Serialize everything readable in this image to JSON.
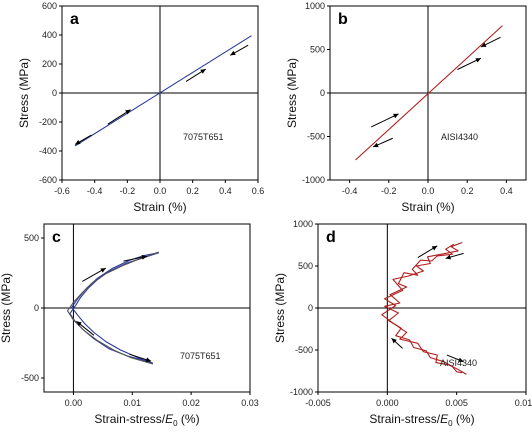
{
  "chart_data": [
    {
      "panel": "a",
      "type": "line",
      "xlabel": "Strain (%)",
      "ylabel": "Stress (MPa)",
      "annotation": "7075T651",
      "xlim": [
        -0.6,
        0.6
      ],
      "ylim": [
        -600,
        600
      ],
      "xticks": [
        "-0.6",
        "-0.4",
        "-0.2",
        "0.0",
        "0.2",
        "0.4",
        "0.6"
      ],
      "yticks": [
        "-600",
        "-400",
        "-200",
        "0",
        "200",
        "400",
        "600"
      ],
      "grid": false,
      "series": [
        {
          "color": "#2b3a9a",
          "points": [
            [
              -0.52,
              -365
            ],
            [
              0.56,
              395
            ]
          ]
        }
      ],
      "arrows": [
        {
          "from": [
            -0.42,
            -290
          ],
          "to": [
            -0.52,
            -355
          ],
          "dir": "down-left"
        },
        {
          "from": [
            -0.32,
            -215
          ],
          "to": [
            -0.18,
            -115
          ],
          "dir": "up-right"
        },
        {
          "from": [
            0.16,
            80
          ],
          "to": [
            0.28,
            165
          ],
          "dir": "up-right"
        },
        {
          "from": [
            0.54,
            330
          ],
          "to": [
            0.43,
            260
          ],
          "dir": "down-left"
        }
      ]
    },
    {
      "panel": "b",
      "type": "line",
      "xlabel": "Strain (%)",
      "ylabel": "Stress (MPa)",
      "annotation": "AISI4340",
      "xlim": [
        -0.5,
        0.5
      ],
      "ylim": [
        -1000,
        1000
      ],
      "xticks": [
        "-0.4",
        "-0.2",
        "0.0",
        "0.2",
        "0.4"
      ],
      "yticks": [
        "-1000",
        "-500",
        "0",
        "500",
        "1000"
      ],
      "grid": false,
      "series": [
        {
          "color": "#b01e1e",
          "points": [
            [
              -0.37,
              -770
            ],
            [
              0.38,
              775
            ]
          ]
        }
      ],
      "arrows": [
        {
          "from": [
            -0.18,
            -520
          ],
          "to": [
            -0.28,
            -620
          ],
          "dir": "down-left"
        },
        {
          "from": [
            -0.29,
            -390
          ],
          "to": [
            -0.15,
            -240
          ],
          "dir": "up-right"
        },
        {
          "from": [
            0.15,
            270
          ],
          "to": [
            0.27,
            400
          ],
          "dir": "up-right"
        },
        {
          "from": [
            0.37,
            640
          ],
          "to": [
            0.27,
            530
          ],
          "dir": "down-left"
        }
      ]
    },
    {
      "panel": "c",
      "type": "line",
      "xlabel": "Strain-stress/E0 (%)",
      "ylabel": "Stress (MPa)",
      "annotation": "7075T651",
      "xlim": [
        -0.005,
        0.03
      ],
      "ylim": [
        -600,
        600
      ],
      "xticks": [
        "0.00",
        "0.01",
        "0.02",
        "0.03"
      ],
      "yticks": [
        "-500",
        "0",
        "500"
      ],
      "grid": false,
      "series": [
        {
          "color": "#2b3a9a",
          "points": [
            [
              0.0145,
              395
            ],
            [
              0.012,
              360
            ],
            [
              0.009,
              320
            ],
            [
              0.006,
              260
            ],
            [
              0.004,
              200
            ],
            [
              0.0025,
              140
            ],
            [
              0.0012,
              75
            ],
            [
              0.0004,
              20
            ],
            [
              -0.0006,
              -40
            ],
            [
              0.0002,
              -90
            ],
            [
              0.0015,
              -150
            ],
            [
              0.0035,
              -220
            ],
            [
              0.006,
              -290
            ],
            [
              0.009,
              -340
            ],
            [
              0.012,
              -375
            ],
            [
              0.0135,
              -395
            ]
          ]
        },
        {
          "color": "#2b3a9a",
          "points": [
            [
              0.0135,
              -395
            ],
            [
              0.011,
              -355
            ],
            [
              0.008,
              -300
            ],
            [
              0.0055,
              -240
            ],
            [
              0.0035,
              -175
            ],
            [
              0.002,
              -115
            ],
            [
              0.0008,
              -55
            ],
            [
              -0.0003,
              5
            ],
            [
              0.0008,
              70
            ],
            [
              0.0022,
              140
            ],
            [
              0.004,
              210
            ],
            [
              0.0065,
              280
            ],
            [
              0.0095,
              340
            ],
            [
              0.012,
              375
            ],
            [
              0.0145,
              395
            ]
          ]
        },
        {
          "color": "#555555",
          "points": [
            [
              0.0145,
              400
            ],
            [
              0.0115,
              355
            ],
            [
              0.0085,
              305
            ],
            [
              0.0055,
              245
            ],
            [
              0.0032,
              180
            ],
            [
              0.0015,
              110
            ],
            [
              0.0,
              40
            ],
            [
              -0.001,
              -20
            ],
            [
              0.0,
              -85
            ],
            [
              0.0018,
              -160
            ],
            [
              0.004,
              -230
            ],
            [
              0.0068,
              -300
            ],
            [
              0.0098,
              -355
            ],
            [
              0.0135,
              -400
            ]
          ]
        }
      ],
      "arrows": [
        {
          "from": [
            0.0015,
            190
          ],
          "to": [
            0.0055,
            285
          ],
          "dir": "up-right"
        },
        {
          "from": [
            0.0085,
            335
          ],
          "to": [
            0.0125,
            370
          ],
          "dir": "up-right"
        },
        {
          "from": [
            0.0035,
            -195
          ],
          "to": [
            0.0005,
            -95
          ],
          "dir": "up-left"
        },
        {
          "from": [
            0.0095,
            -330
          ],
          "to": [
            0.0132,
            -380
          ],
          "dir": "down-right"
        }
      ]
    },
    {
      "panel": "d",
      "type": "line",
      "xlabel": "Strain-stress/E0 (%)",
      "ylabel": "Stress (MPa)",
      "annotation": "AISI4340",
      "xlim": [
        -0.005,
        0.01
      ],
      "ylim": [
        -1000,
        1000
      ],
      "xticks": [
        "-0.005",
        "0.000",
        "0.005",
        "0.010"
      ],
      "yticks": [
        "-1000",
        "-500",
        "0",
        "500",
        "1000"
      ],
      "grid": false,
      "series": [
        {
          "color": "#b01e1e",
          "points": [
            [
              0.0048,
              760
            ],
            [
              0.0042,
              700
            ],
            [
              0.0047,
              640
            ],
            [
              0.0036,
              620
            ],
            [
              0.0032,
              560
            ],
            [
              0.0024,
              570
            ],
            [
              0.0018,
              460
            ],
            [
              0.0022,
              390
            ],
            [
              0.0012,
              420
            ],
            [
              0.0008,
              290
            ],
            [
              0.0014,
              250
            ],
            [
              0.0002,
              160
            ],
            [
              0.0009,
              60
            ],
            [
              -0.0002,
              20
            ],
            [
              0.0008,
              -60
            ],
            [
              0.0001,
              -150
            ],
            [
              0.001,
              -240
            ],
            [
              0.0006,
              -330
            ],
            [
              0.0016,
              -380
            ],
            [
              0.0019,
              -470
            ],
            [
              0.0028,
              -510
            ],
            [
              0.0031,
              -590
            ],
            [
              0.0041,
              -640
            ],
            [
              0.0047,
              -700
            ],
            [
              0.005,
              -760
            ],
            [
              0.0054,
              -770
            ]
          ]
        },
        {
          "color": "#b01e1e",
          "points": [
            [
              0.0054,
              780
            ],
            [
              0.0046,
              730
            ],
            [
              0.0051,
              680
            ],
            [
              0.0039,
              640
            ],
            [
              0.0029,
              610
            ],
            [
              0.0031,
              530
            ],
            [
              0.0021,
              500
            ],
            [
              0.0026,
              440
            ],
            [
              0.0015,
              380
            ],
            [
              0.0004,
              340
            ],
            [
              0.0011,
              210
            ],
            [
              -0.0002,
              110
            ],
            [
              0.0006,
              30
            ],
            [
              -0.0004,
              -80
            ],
            [
              0.0004,
              -180
            ],
            [
              0.0014,
              -290
            ],
            [
              0.0009,
              -370
            ],
            [
              0.0022,
              -420
            ],
            [
              0.0026,
              -520
            ],
            [
              0.0036,
              -560
            ],
            [
              0.0035,
              -650
            ],
            [
              0.0045,
              -680
            ],
            [
              0.0052,
              -740
            ],
            [
              0.0057,
              -790
            ]
          ]
        }
      ],
      "arrows": [
        {
          "from": [
            0.0022,
            600
          ],
          "to": [
            0.0036,
            740
          ],
          "dir": "up-right"
        },
        {
          "from": [
            0.0055,
            650
          ],
          "to": [
            0.0042,
            590
          ],
          "dir": "left"
        },
        {
          "from": [
            0.0011,
            -480
          ],
          "to": [
            0.0003,
            -360
          ],
          "dir": "up-left"
        },
        {
          "from": [
            0.0043,
            -560
          ],
          "to": [
            0.0055,
            -640
          ],
          "dir": "down-right"
        }
      ]
    }
  ]
}
